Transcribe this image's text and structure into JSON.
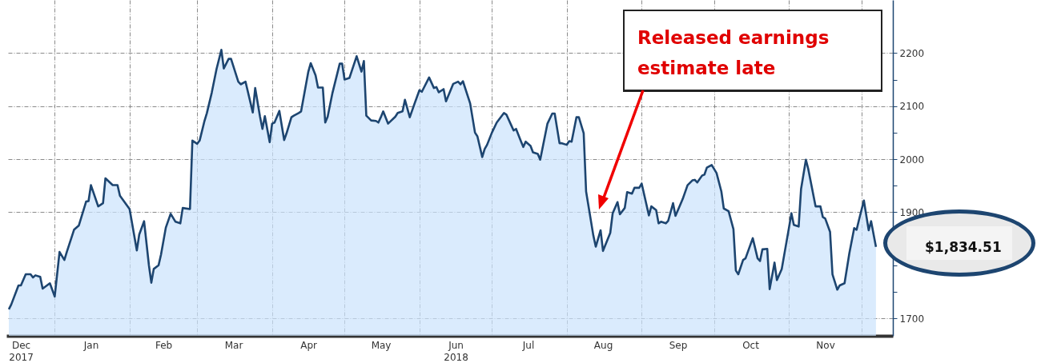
{
  "chart_data": {
    "type": "area",
    "annotations": [
      "Released earnings estimate late",
      "$1,834.51"
    ],
    "x": [
      "2017-12-13",
      "2017-12-14",
      "2017-12-17",
      "2017-12-18",
      "2017-12-20",
      "2017-12-22",
      "2017-12-23",
      "2017-12-24",
      "2017-12-26",
      "2017-12-27",
      "2017-12-30",
      "2018-01-01",
      "2018-01-03",
      "2018-01-05",
      "2018-01-06",
      "2018-01-08",
      "2018-01-09",
      "2018-01-11",
      "2018-01-14",
      "2018-01-15",
      "2018-01-16",
      "2018-01-19",
      "2018-01-21",
      "2018-01-22",
      "2018-01-25",
      "2018-01-27",
      "2018-01-28",
      "2018-02-01",
      "2018-02-04",
      "2018-02-05",
      "2018-02-07",
      "2018-02-09",
      "2018-02-10",
      "2018-02-11",
      "2018-02-13",
      "2018-02-14",
      "2018-02-16",
      "2018-02-18",
      "2018-02-20",
      "2018-02-22",
      "2018-02-23",
      "2018-02-26",
      "2018-02-27",
      "2018-03-01",
      "2018-03-02",
      "2018-03-04",
      "2018-03-05",
      "2018-03-07",
      "2018-03-09",
      "2018-03-11",
      "2018-03-12",
      "2018-03-14",
      "2018-03-15",
      "2018-03-18",
      "2018-03-19",
      "2018-03-21",
      "2018-03-24",
      "2018-03-25",
      "2018-03-27",
      "2018-03-28",
      "2018-03-29",
      "2018-03-31",
      "2018-04-01",
      "2018-04-02",
      "2018-04-04",
      "2018-04-06",
      "2018-04-07",
      "2018-04-09",
      "2018-04-10",
      "2018-04-12",
      "2018-04-13",
      "2018-04-16",
      "2018-04-17",
      "2018-04-19",
      "2018-04-20",
      "2018-04-22",
      "2018-04-23",
      "2018-04-24",
      "2018-04-26",
      "2018-04-29",
      "2018-04-30",
      "2018-05-01",
      "2018-05-03",
      "2018-05-06",
      "2018-05-08",
      "2018-05-09",
      "2018-05-10",
      "2018-05-12",
      "2018-05-14",
      "2018-05-15",
      "2018-05-16",
      "2018-05-17",
      "2018-05-19",
      "2018-05-22",
      "2018-05-23",
      "2018-05-25",
      "2018-05-26",
      "2018-05-28",
      "2018-05-30",
      "2018-06-01",
      "2018-06-02",
      "2018-06-05",
      "2018-06-07",
      "2018-06-08",
      "2018-06-09",
      "2018-06-11",
      "2018-06-12",
      "2018-06-15",
      "2018-06-17",
      "2018-06-18",
      "2018-06-19",
      "2018-06-22",
      "2018-06-24",
      "2018-06-25",
      "2018-06-27",
      "2018-06-28",
      "2018-06-29",
      "2018-07-01",
      "2018-07-03",
      "2018-07-06",
      "2018-07-07",
      "2018-07-09",
      "2018-07-10",
      "2018-07-11",
      "2018-07-13",
      "2018-07-14",
      "2018-07-15",
      "2018-07-17",
      "2018-07-18",
      "2018-07-20",
      "2018-07-21",
      "2018-07-24",
      "2018-07-26",
      "2018-07-27",
      "2018-07-29",
      "2018-07-30",
      "2018-08-01",
      "2018-08-02",
      "2018-08-03",
      "2018-08-05",
      "2018-08-06",
      "2018-08-08",
      "2018-08-09",
      "2018-08-12",
      "2018-08-13",
      "2018-08-15",
      "2018-08-16",
      "2018-08-19",
      "2018-08-20",
      "2018-08-22",
      "2018-08-23",
      "2018-08-25",
      "2018-08-26",
      "2018-08-28",
      "2018-08-29",
      "2018-08-31",
      "2018-09-01",
      "2018-09-04",
      "2018-09-05",
      "2018-09-07",
      "2018-09-08",
      "2018-09-09",
      "2018-09-11",
      "2018-09-12",
      "2018-09-14",
      "2018-09-15",
      "2018-09-18",
      "2018-09-20",
      "2018-09-22",
      "2018-09-23",
      "2018-09-24",
      "2018-09-26",
      "2018-09-27",
      "2018-09-28",
      "2018-09-30",
      "2018-10-02",
      "2018-10-04",
      "2018-10-05",
      "2018-10-07",
      "2018-10-09",
      "2018-10-10",
      "2018-10-11",
      "2018-10-13",
      "2018-10-14",
      "2018-10-17",
      "2018-10-19",
      "2018-10-20",
      "2018-10-21",
      "2018-10-23",
      "2018-10-24",
      "2018-10-26",
      "2018-10-27",
      "2018-10-29",
      "2018-11-01",
      "2018-11-02",
      "2018-11-03",
      "2018-11-05",
      "2018-11-06",
      "2018-11-08",
      "2018-11-09",
      "2018-11-12",
      "2018-11-14",
      "2018-11-15",
      "2018-11-16",
      "2018-11-18",
      "2018-11-19",
      "2018-11-21",
      "2018-11-22",
      "2018-11-24",
      "2018-11-26",
      "2018-11-28",
      "2018-11-29",
      "2018-11-30",
      "2018-12-02",
      "2018-12-04",
      "2018-12-05",
      "2018-12-07"
    ],
    "series": [
      {
        "color": "#1d4570",
        "values": [
          1717,
          1726,
          1762,
          1762,
          1783,
          1783,
          1777,
          1781,
          1778,
          1756,
          1766,
          1741,
          1825,
          1810,
          1825,
          1853,
          1867,
          1875,
          1920,
          1921,
          1951,
          1911,
          1917,
          1964,
          1951,
          1951,
          1931,
          1906,
          1828,
          1858,
          1883,
          1800,
          1767,
          1793,
          1800,
          1820,
          1871,
          1897,
          1882,
          1879,
          1908,
          1906,
          2035,
          2029,
          2035,
          2072,
          2087,
          2125,
          2170,
          2206,
          2171,
          2189,
          2189,
          2146,
          2141,
          2146,
          2088,
          2134,
          2080,
          2057,
          2081,
          2032,
          2067,
          2069,
          2091,
          2036,
          2049,
          2079,
          2082,
          2087,
          2090,
          2165,
          2181,
          2158,
          2135,
          2135,
          2069,
          2080,
          2125,
          2180,
          2180,
          2150,
          2153,
          2194,
          2165,
          2185,
          2082,
          2073,
          2072,
          2069,
          2079,
          2090,
          2067,
          2080,
          2087,
          2090,
          2112,
          2079,
          2105,
          2130,
          2127,
          2154,
          2134,
          2136,
          2126,
          2132,
          2109,
          2142,
          2146,
          2141,
          2147,
          2105,
          2050,
          2043,
          2004,
          2019,
          2027,
          2050,
          2069,
          2087,
          2084,
          2064,
          2054,
          2057,
          2034,
          2023,
          2033,
          2025,
          2013,
          2010,
          1999,
          2067,
          2086,
          2086,
          2030,
          2030,
          2027,
          2034,
          2033,
          2079,
          2079,
          2049,
          1939,
          1856,
          1835,
          1866,
          1827,
          1861,
          1898,
          1919,
          1896,
          1908,
          1938,
          1935,
          1946,
          1946,
          1954,
          1894,
          1911,
          1904,
          1879,
          1882,
          1879,
          1884,
          1917,
          1893,
          1925,
          1951,
          1960,
          1961,
          1956,
          1969,
          1971,
          1984,
          1989,
          1974,
          1939,
          1907,
          1902,
          1868,
          1790,
          1783,
          1810,
          1813,
          1851,
          1813,
          1808,
          1830,
          1831,
          1755,
          1805,
          1772,
          1793,
          1871,
          1898,
          1876,
          1873,
          1944,
          1999,
          1981,
          1911,
          1911,
          1891,
          1888,
          1863,
          1783,
          1754,
          1762,
          1766,
          1823,
          1870,
          1867,
          1886,
          1922,
          1866,
          1883,
          1834.51
        ]
      }
    ],
    "xlim": [
      "2017-12-12",
      "2018-12-14"
    ],
    "xticks": [
      {
        "value": "2017-12-18",
        "label": "Dec\n2017"
      },
      {
        "value": "2018-01-01",
        "label": null
      },
      {
        "value": "2018-01-16",
        "label": "Jan"
      },
      {
        "value": "2018-02-01",
        "label": null
      },
      {
        "value": "2018-02-15",
        "label": "Feb"
      },
      {
        "value": "2018-03-01",
        "label": null
      },
      {
        "value": "2018-03-16",
        "label": "Mar"
      },
      {
        "value": "2018-04-01",
        "label": null
      },
      {
        "value": "2018-04-16",
        "label": "Apr"
      },
      {
        "value": "2018-05-01",
        "label": null
      },
      {
        "value": "2018-05-16",
        "label": "May"
      },
      {
        "value": "2018-06-01",
        "label": null
      },
      {
        "value": "2018-06-16",
        "label": "Jun\n2018"
      },
      {
        "value": "2018-07-01",
        "label": null
      },
      {
        "value": "2018-07-16",
        "label": "Jul"
      },
      {
        "value": "2018-08-01",
        "label": null
      },
      {
        "value": "2018-08-16",
        "label": "Aug"
      },
      {
        "value": "2018-09-01",
        "label": null
      },
      {
        "value": "2018-09-16",
        "label": "Sep"
      },
      {
        "value": "2018-10-01",
        "label": null
      },
      {
        "value": "2018-10-16",
        "label": "Oct"
      },
      {
        "value": "2018-11-01",
        "label": null
      },
      {
        "value": "2018-11-16",
        "label": "Nov"
      },
      {
        "value": "2018-12-01",
        "label": null
      }
    ],
    "ylim": [
      1667,
      2300
    ],
    "yticks": [
      1700,
      {
        "value": 1750,
        "label": null
      },
      {
        "value": 1800,
        "label": null
      },
      {
        "value": 1850,
        "label": null
      },
      1900,
      {
        "value": 1950,
        "label": null
      },
      2000,
      {
        "value": 2050,
        "label": null
      },
      2100,
      {
        "value": 2150,
        "label": null
      },
      2200
    ],
    "grid": true
  }
}
